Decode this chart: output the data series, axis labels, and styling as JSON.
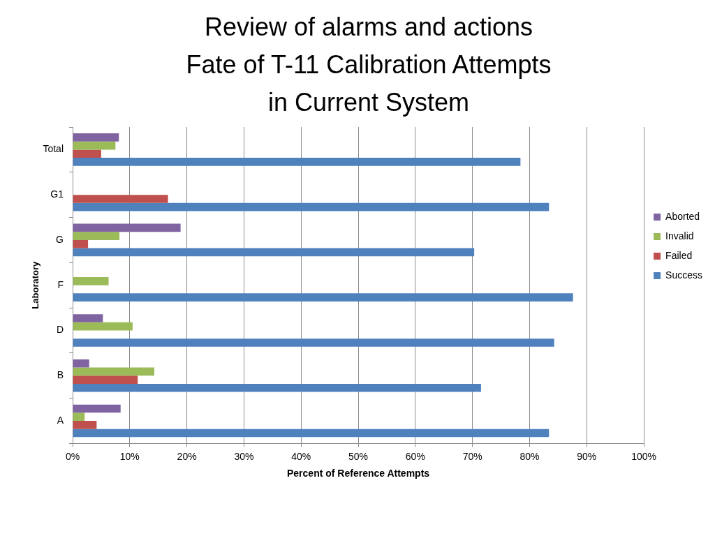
{
  "chart_data": {
    "type": "bar",
    "orientation": "horizontal",
    "title": "Review of alarms and actions\nFate of T-11 Calibration Attempts\nin Current System",
    "xlabel": "Percent of Reference Attempts",
    "ylabel": "Laboratory",
    "categories": [
      "Total",
      "G1",
      "G",
      "F",
      "D",
      "B",
      "A"
    ],
    "series": [
      {
        "name": "Aborted",
        "color": "#8064a2",
        "values": [
          8.1,
          0,
          18.9,
          0,
          5.3,
          2.9,
          8.4
        ]
      },
      {
        "name": "Invalid",
        "color": "#9bbb59",
        "values": [
          7.5,
          0,
          8.2,
          6.3,
          10.5,
          14.3,
          2.1
        ]
      },
      {
        "name": "Failed",
        "color": "#c0504d",
        "values": [
          5.0,
          16.7,
          2.7,
          0,
          0,
          11.4,
          4.2
        ]
      },
      {
        "name": "Success",
        "color": "#4f81bd",
        "values": [
          78.4,
          83.4,
          70.3,
          87.6,
          84.3,
          71.5,
          83.4
        ]
      }
    ],
    "xlim": [
      0,
      100
    ],
    "xticks": [
      {
        "value": 0,
        "label": "0%"
      },
      {
        "value": 10,
        "label": "10%"
      },
      {
        "value": 20,
        "label": "20%"
      },
      {
        "value": 30,
        "label": "30%"
      },
      {
        "value": 40,
        "label": "40%"
      },
      {
        "value": 50,
        "label": "50%"
      },
      {
        "value": 60,
        "label": "60%"
      },
      {
        "value": 70,
        "label": "70%"
      },
      {
        "value": 80,
        "label": "80%"
      },
      {
        "value": 90,
        "label": "90%"
      },
      {
        "value": 100,
        "label": "100%"
      }
    ],
    "grid": "x",
    "legend": "right"
  }
}
